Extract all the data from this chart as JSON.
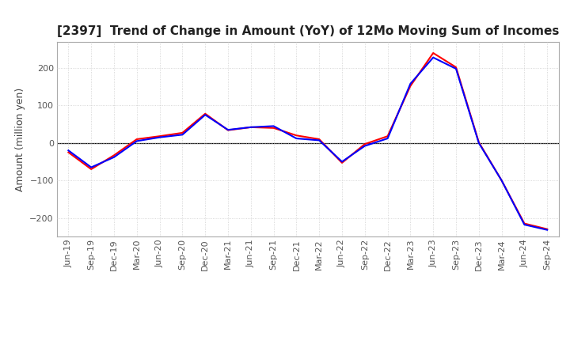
{
  "title": "[2397]  Trend of Change in Amount (YoY) of 12Mo Moving Sum of Incomes",
  "ylabel": "Amount (million yen)",
  "title_fontsize": 11,
  "label_fontsize": 9,
  "tick_fontsize": 8,
  "background_color": "#ffffff",
  "grid_color": "#cccccc",
  "x_labels": [
    "Jun-19",
    "Sep-19",
    "Dec-19",
    "Mar-20",
    "Jun-20",
    "Sep-20",
    "Dec-20",
    "Mar-21",
    "Jun-21",
    "Sep-21",
    "Dec-21",
    "Mar-22",
    "Jun-22",
    "Sep-22",
    "Dec-22",
    "Mar-23",
    "Jun-23",
    "Sep-23",
    "Dec-23",
    "Mar-24",
    "Jun-24",
    "Sep-24"
  ],
  "ordinary_income": [
    -20,
    -65,
    -38,
    5,
    15,
    22,
    75,
    35,
    42,
    45,
    12,
    7,
    -50,
    -8,
    12,
    158,
    228,
    198,
    0,
    -100,
    -218,
    -232
  ],
  "net_income": [
    -25,
    -70,
    -33,
    10,
    18,
    27,
    78,
    34,
    42,
    40,
    20,
    10,
    -53,
    -3,
    18,
    152,
    240,
    202,
    2,
    -100,
    -215,
    -230
  ],
  "ordinary_color": "#0000ff",
  "net_color": "#ff0000",
  "ylim": [
    -250,
    270
  ],
  "yticks": [
    -200,
    -100,
    0,
    100,
    200
  ]
}
